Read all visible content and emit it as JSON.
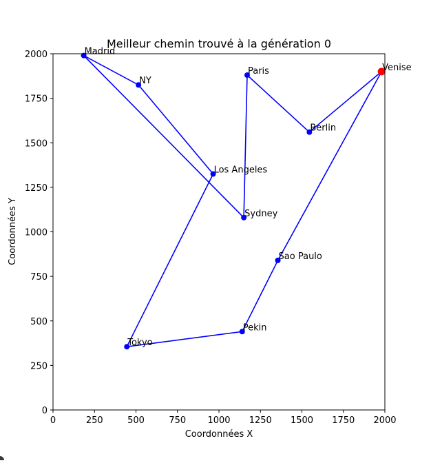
{
  "chart_data": {
    "type": "line",
    "title": "Meilleur chemin trouvé à la génération 0",
    "xlabel": "Coordonnées X",
    "ylabel": "Coordonnées Y",
    "xlim": [
      0,
      2000
    ],
    "ylim": [
      0,
      2000
    ],
    "xticks": [
      0,
      250,
      500,
      750,
      1000,
      1250,
      1500,
      1750,
      2000
    ],
    "yticks": [
      0,
      250,
      500,
      750,
      1000,
      1250,
      1500,
      1750,
      2000
    ],
    "grid": false,
    "line_color": "#0000ff",
    "point_color": "#0000ff",
    "start_color": "#ff0000",
    "cities": [
      {
        "name": "Venise",
        "x": 1980,
        "y": 1900
      },
      {
        "name": "Berlin",
        "x": 1545,
        "y": 1560
      },
      {
        "name": "Paris",
        "x": 1170,
        "y": 1880
      },
      {
        "name": "Sydney",
        "x": 1150,
        "y": 1080
      },
      {
        "name": "Madrid",
        "x": 185,
        "y": 1990
      },
      {
        "name": "NY",
        "x": 515,
        "y": 1825
      },
      {
        "name": "Los Angeles",
        "x": 965,
        "y": 1325
      },
      {
        "name": "Tokyo",
        "x": 445,
        "y": 355
      },
      {
        "name": "Pekin",
        "x": 1140,
        "y": 440
      },
      {
        "name": "Sao Paulo",
        "x": 1355,
        "y": 840
      }
    ],
    "path_closed": true
  }
}
